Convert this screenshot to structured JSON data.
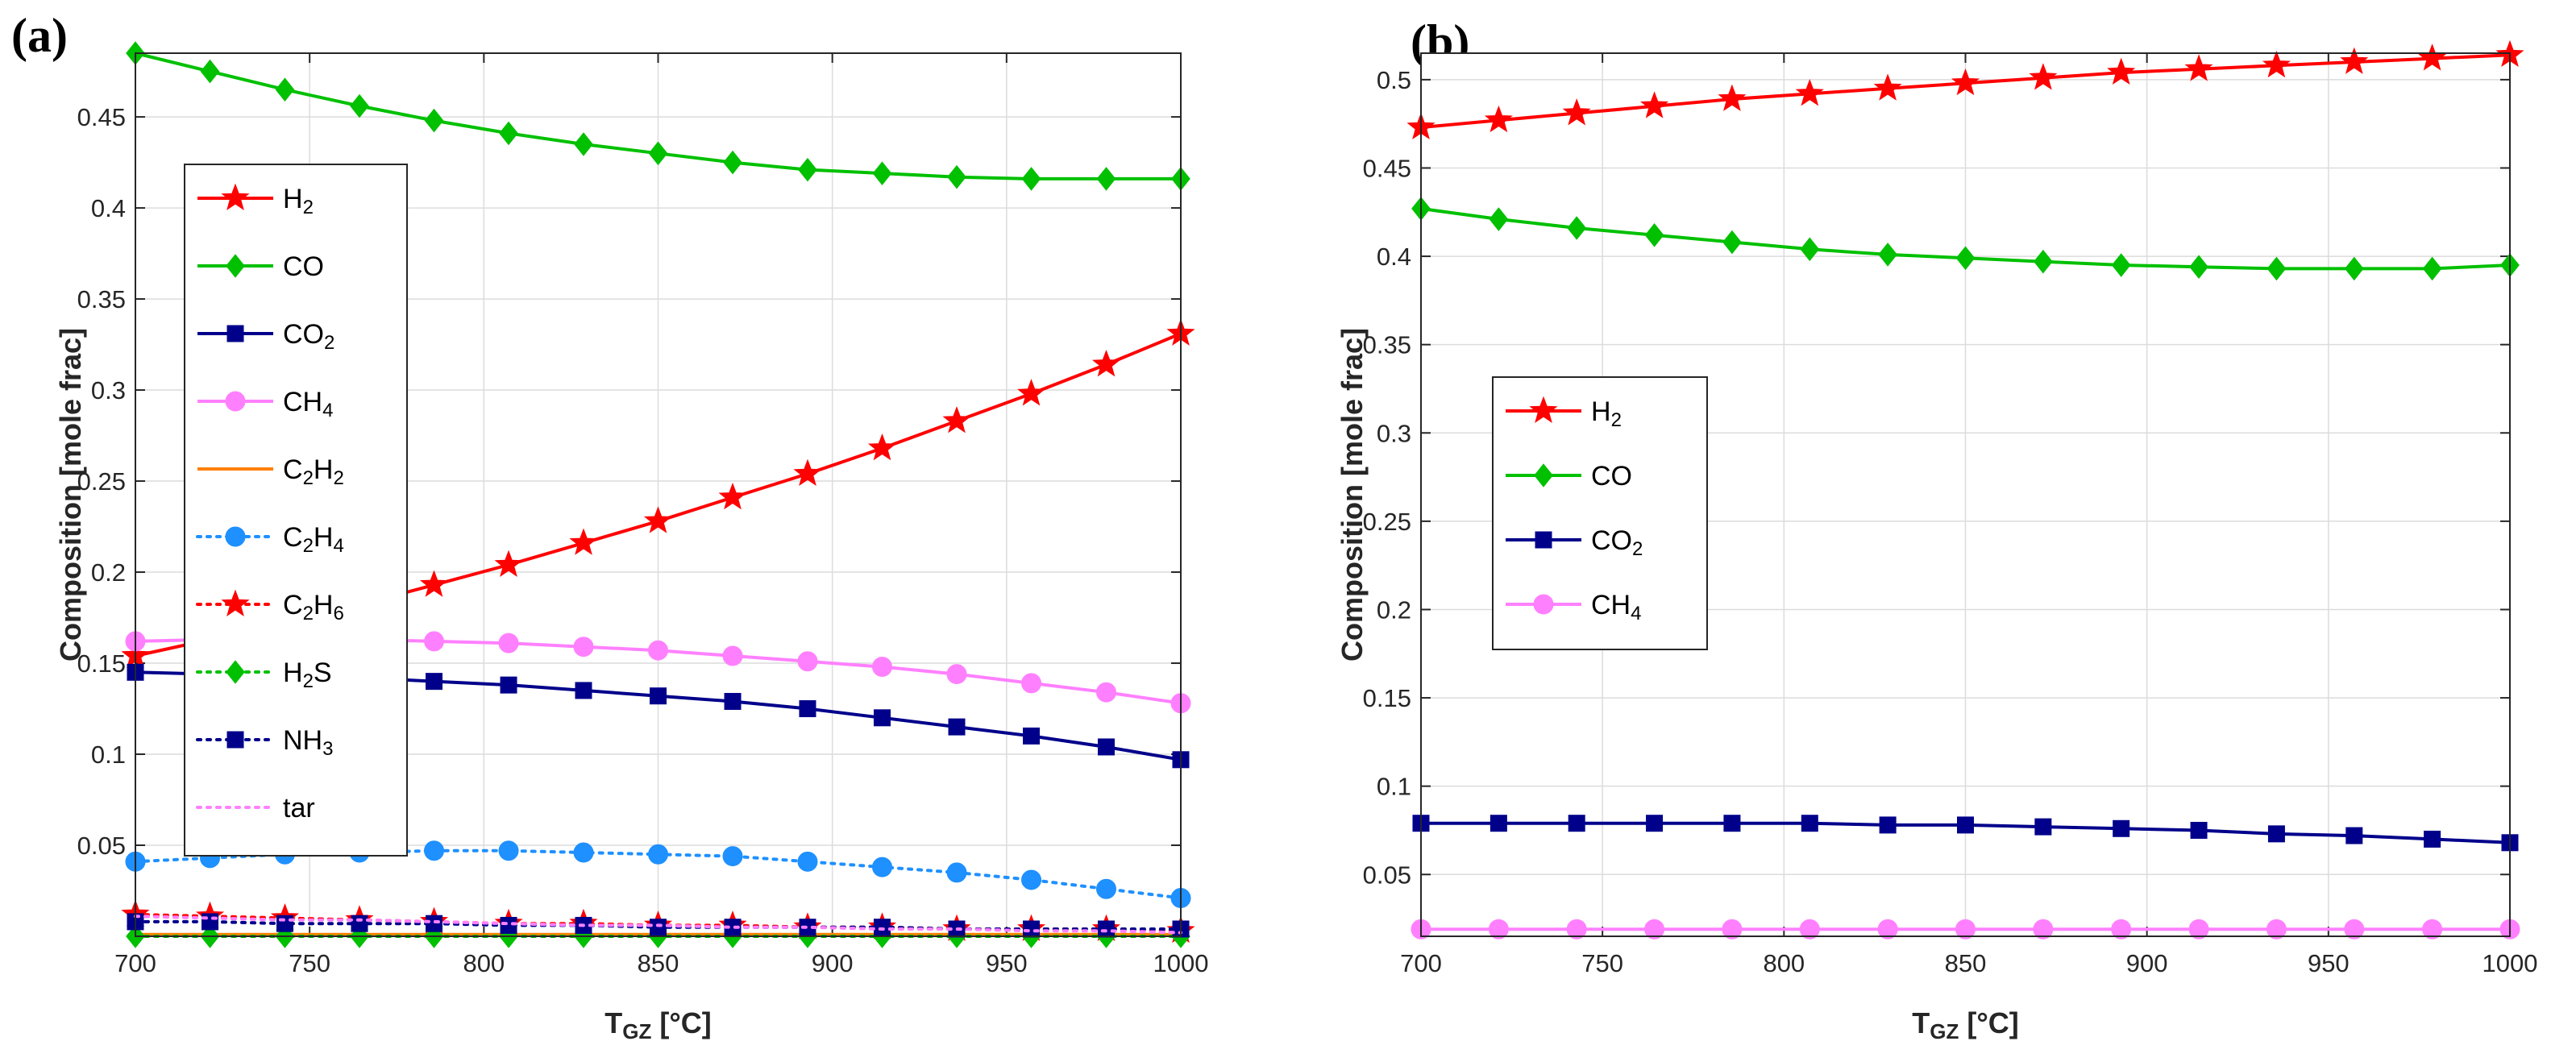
{
  "panels": {
    "a_label": "(a)",
    "b_label": "(b)"
  },
  "chart_data": [
    {
      "type": "line",
      "panel": "(a)",
      "xlabel": "T_GZ [°C]",
      "ylabel": "Composition [mole frac]",
      "xlim": [
        700,
        1000
      ],
      "ylim": [
        0,
        0.485
      ],
      "xticks": [
        700,
        750,
        800,
        850,
        900,
        950,
        1000
      ],
      "yticks": [
        0.05,
        0.1,
        0.15,
        0.2,
        0.25,
        0.3,
        0.35,
        0.4,
        0.45
      ],
      "grid": true,
      "legend_position": "upper-left",
      "x": [
        700,
        721.4,
        742.9,
        764.3,
        785.7,
        807.1,
        828.6,
        850,
        871.4,
        892.9,
        914.3,
        935.7,
        957.1,
        978.6,
        1000
      ],
      "series": [
        {
          "name": "H2",
          "base": "H",
          "sub": "2",
          "color": "#ff0000",
          "marker": "star",
          "dash": "solid",
          "values": [
            0.154,
            0.163,
            0.172,
            0.182,
            0.193,
            0.204,
            0.216,
            0.228,
            0.241,
            0.254,
            0.268,
            0.283,
            0.298,
            0.314,
            0.331
          ]
        },
        {
          "name": "CO",
          "base": "CO",
          "sub": "",
          "color": "#00c000",
          "marker": "diamond",
          "dash": "solid",
          "values": [
            0.485,
            0.475,
            0.465,
            0.456,
            0.448,
            0.441,
            0.435,
            0.43,
            0.425,
            0.421,
            0.419,
            0.417,
            0.416,
            0.416,
            0.416
          ]
        },
        {
          "name": "CO2",
          "base": "CO",
          "sub": "2",
          "color": "#00008b",
          "marker": "square",
          "dash": "solid",
          "values": [
            0.145,
            0.144,
            0.143,
            0.142,
            0.14,
            0.138,
            0.135,
            0.132,
            0.129,
            0.125,
            0.12,
            0.115,
            0.11,
            0.104,
            0.097
          ]
        },
        {
          "name": "CH4",
          "base": "CH",
          "sub": "4",
          "color": "#ff80ff",
          "marker": "circle",
          "dash": "solid",
          "values": [
            0.162,
            0.163,
            0.163,
            0.163,
            0.162,
            0.161,
            0.159,
            0.157,
            0.154,
            0.151,
            0.148,
            0.144,
            0.139,
            0.134,
            0.128
          ]
        },
        {
          "name": "C2H2",
          "base": "C",
          "sub": "2",
          "base2": "H",
          "sub2": "2",
          "color": "#ff8000",
          "marker": "none",
          "dash": "solid",
          "values": [
            0.001,
            0.001,
            0.001,
            0.001,
            0.001,
            0.001,
            0.001,
            0.001,
            0.001,
            0.001,
            0.001,
            0.001,
            0.001,
            0.001,
            0.001
          ]
        },
        {
          "name": "C2H4",
          "base": "C",
          "sub": "2",
          "base2": "H",
          "sub2": "4",
          "color": "#1e90ff",
          "marker": "circle",
          "dash": "dot",
          "values": [
            0.041,
            0.043,
            0.045,
            0.046,
            0.047,
            0.047,
            0.046,
            0.045,
            0.044,
            0.041,
            0.038,
            0.035,
            0.031,
            0.026,
            0.021
          ]
        },
        {
          "name": "C2H6",
          "base": "C",
          "sub": "2",
          "base2": "H",
          "sub2": "6",
          "color": "#ff0000",
          "marker": "star",
          "dash": "dot",
          "values": [
            0.012,
            0.011,
            0.01,
            0.009,
            0.008,
            0.007,
            0.007,
            0.006,
            0.006,
            0.005,
            0.005,
            0.004,
            0.004,
            0.004,
            0.003
          ]
        },
        {
          "name": "H2S",
          "base": "H",
          "sub": "2",
          "base2": "S",
          "sub2": "",
          "color": "#00c000",
          "marker": "diamond",
          "dash": "dot",
          "values": [
            0.0,
            0.0,
            0.0,
            0.0,
            0.0,
            0.0,
            0.0,
            0.0,
            0.0,
            0.0,
            0.0,
            0.0,
            0.0,
            0.0,
            0.0
          ]
        },
        {
          "name": "NH3",
          "base": "NH",
          "sub": "3",
          "color": "#00008b",
          "marker": "square",
          "dash": "dot",
          "values": [
            0.008,
            0.008,
            0.007,
            0.007,
            0.007,
            0.006,
            0.006,
            0.005,
            0.005,
            0.005,
            0.005,
            0.004,
            0.004,
            0.004,
            0.004
          ]
        },
        {
          "name": "tar",
          "base": "tar",
          "sub": "",
          "color": "#ff80ff",
          "marker": "none",
          "dash": "dot",
          "values": [
            0.011,
            0.01,
            0.009,
            0.009,
            0.008,
            0.007,
            0.006,
            0.006,
            0.005,
            0.005,
            0.004,
            0.004,
            0.003,
            0.003,
            0.002
          ]
        }
      ]
    },
    {
      "type": "line",
      "panel": "(b)",
      "xlabel": "T_GZ [°C]",
      "ylabel": "Composition [mole frac]",
      "xlim": [
        700,
        1000
      ],
      "ylim": [
        0.015,
        0.515
      ],
      "xticks": [
        700,
        750,
        800,
        850,
        900,
        950,
        1000
      ],
      "yticks": [
        0.05,
        0.1,
        0.15,
        0.2,
        0.25,
        0.3,
        0.35,
        0.4,
        0.45,
        0.5
      ],
      "grid": true,
      "legend_position": "middle-left",
      "x": [
        700,
        721.4,
        742.9,
        764.3,
        785.7,
        807.1,
        828.6,
        850,
        871.4,
        892.9,
        914.3,
        935.7,
        957.1,
        978.6,
        1000
      ],
      "series": [
        {
          "name": "H2",
          "base": "H",
          "sub": "2",
          "color": "#ff0000",
          "marker": "star",
          "dash": "solid",
          "values": [
            0.473,
            0.477,
            0.481,
            0.485,
            0.489,
            0.492,
            0.495,
            0.498,
            0.501,
            0.504,
            0.506,
            0.508,
            0.51,
            0.512,
            0.514
          ]
        },
        {
          "name": "CO",
          "base": "CO",
          "sub": "",
          "color": "#00c000",
          "marker": "diamond",
          "dash": "solid",
          "values": [
            0.427,
            0.421,
            0.416,
            0.412,
            0.408,
            0.404,
            0.401,
            0.399,
            0.397,
            0.395,
            0.394,
            0.393,
            0.393,
            0.393,
            0.395
          ]
        },
        {
          "name": "CO2",
          "base": "CO",
          "sub": "2",
          "color": "#00008b",
          "marker": "square",
          "dash": "solid",
          "values": [
            0.079,
            0.079,
            0.079,
            0.079,
            0.079,
            0.079,
            0.078,
            0.078,
            0.077,
            0.076,
            0.075,
            0.073,
            0.072,
            0.07,
            0.068
          ]
        },
        {
          "name": "CH4",
          "base": "CH",
          "sub": "4",
          "color": "#ff80ff",
          "marker": "circle",
          "dash": "solid",
          "values": [
            0.019,
            0.019,
            0.019,
            0.019,
            0.019,
            0.019,
            0.019,
            0.019,
            0.019,
            0.019,
            0.019,
            0.019,
            0.019,
            0.019,
            0.019
          ]
        }
      ]
    }
  ]
}
